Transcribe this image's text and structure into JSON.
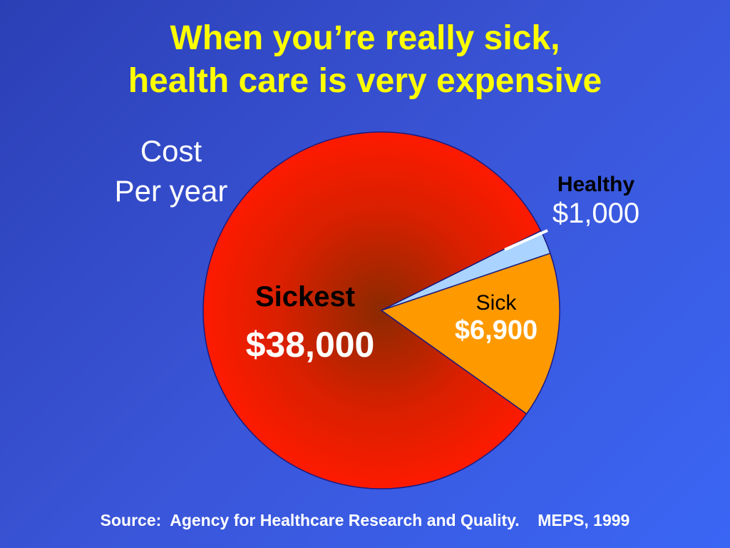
{
  "slide": {
    "title_line1": "When you’re really sick,",
    "title_line2": "health care is very expensive",
    "side_label_line1": "Cost",
    "side_label_line2": "Per year",
    "source": "Source:  Agency for Healthcare Research and Quality.    MEPS, 1999"
  },
  "colors": {
    "title": "#ffff00",
    "sickest": "#ff1a00",
    "sickest_center": "#8b2a00",
    "sick": "#ff9900",
    "healthy": "#aad4ff"
  },
  "chart_data": {
    "type": "pie",
    "title": "",
    "slices": [
      {
        "name": "Healthy",
        "label": "$1,000",
        "value": 1000,
        "color": "#aad4ff"
      },
      {
        "name": "Sick",
        "label": "$6,900",
        "value": 6900,
        "color": "#ff9900"
      },
      {
        "name": "Sickest",
        "label": "$38,000",
        "value": 38000,
        "color": "#ff1a00"
      }
    ]
  }
}
